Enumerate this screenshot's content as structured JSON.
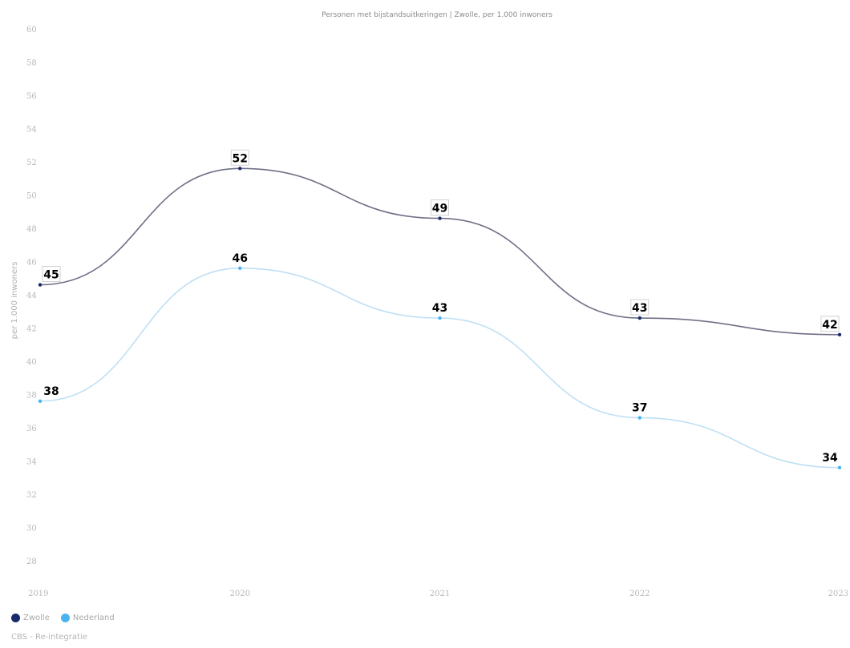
{
  "chart_data": {
    "type": "line",
    "title": "Personen met bijstandsuitkeringen | Zwolle, per 1.000 inwoners",
    "xlabel": "",
    "ylabel": "per 1.000 inwoners",
    "categories": [
      "2019",
      "2020",
      "2021",
      "2022",
      "2023"
    ],
    "ylim": [
      28,
      60
    ],
    "yticks": [
      60,
      58,
      56,
      54,
      52,
      50,
      48,
      46,
      44,
      42,
      40,
      38,
      36,
      34,
      32,
      30,
      28
    ],
    "series": [
      {
        "name": "Zwolle",
        "color": "#1a2a6e",
        "values": [
          44.6,
          51.6,
          48.6,
          42.6,
          41.6
        ],
        "labels": [
          "45",
          "52",
          "49",
          "43",
          "42"
        ],
        "boxed": true
      },
      {
        "name": "Nederland",
        "color": "#4ab4f0",
        "values": [
          37.6,
          45.6,
          42.6,
          36.6,
          33.6
        ],
        "labels": [
          "38",
          "46",
          "43",
          "37",
          "34"
        ],
        "boxed": false
      }
    ],
    "grid": false,
    "legend_position": "bottom-left"
  },
  "source": "CBS - Re-integratie"
}
